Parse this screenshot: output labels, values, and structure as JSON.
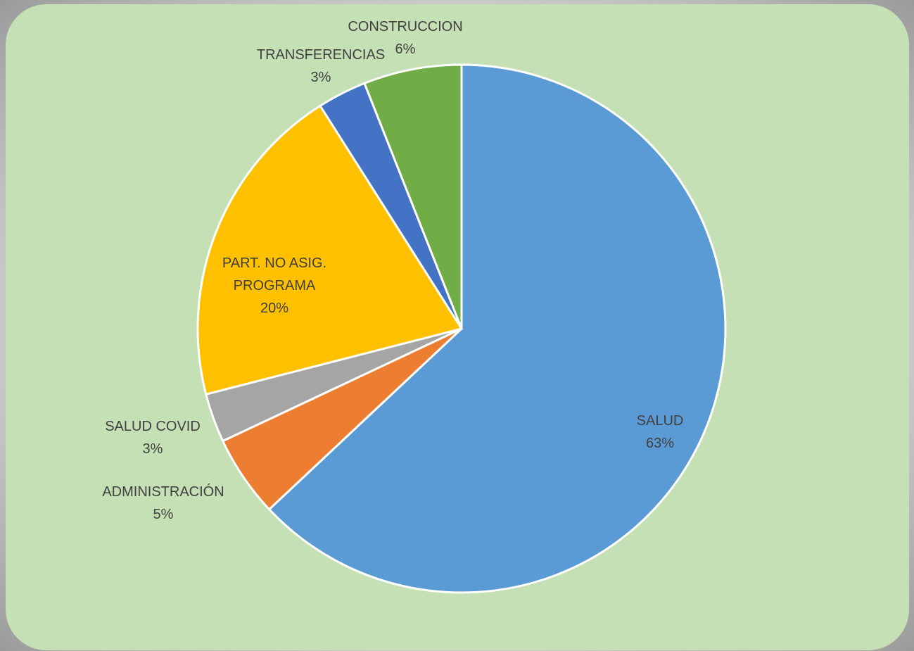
{
  "chart_data": {
    "type": "pie",
    "categories": [
      "SALUD",
      "ADMINISTRACIÓN",
      "SALUD COVID",
      "PART. NO ASIG. PROGRAMA",
      "TRANSFERENCIAS",
      "CONSTRUCCION"
    ],
    "values": [
      63,
      5,
      3,
      20,
      3,
      6
    ],
    "value_labels": [
      "63%",
      "5%",
      "3%",
      "20%",
      "3%",
      "6%"
    ],
    "colors": [
      "#5b9bd5",
      "#ed7d31",
      "#a5a5a5",
      "#ffc000",
      "#4472c4",
      "#70ad47"
    ]
  }
}
